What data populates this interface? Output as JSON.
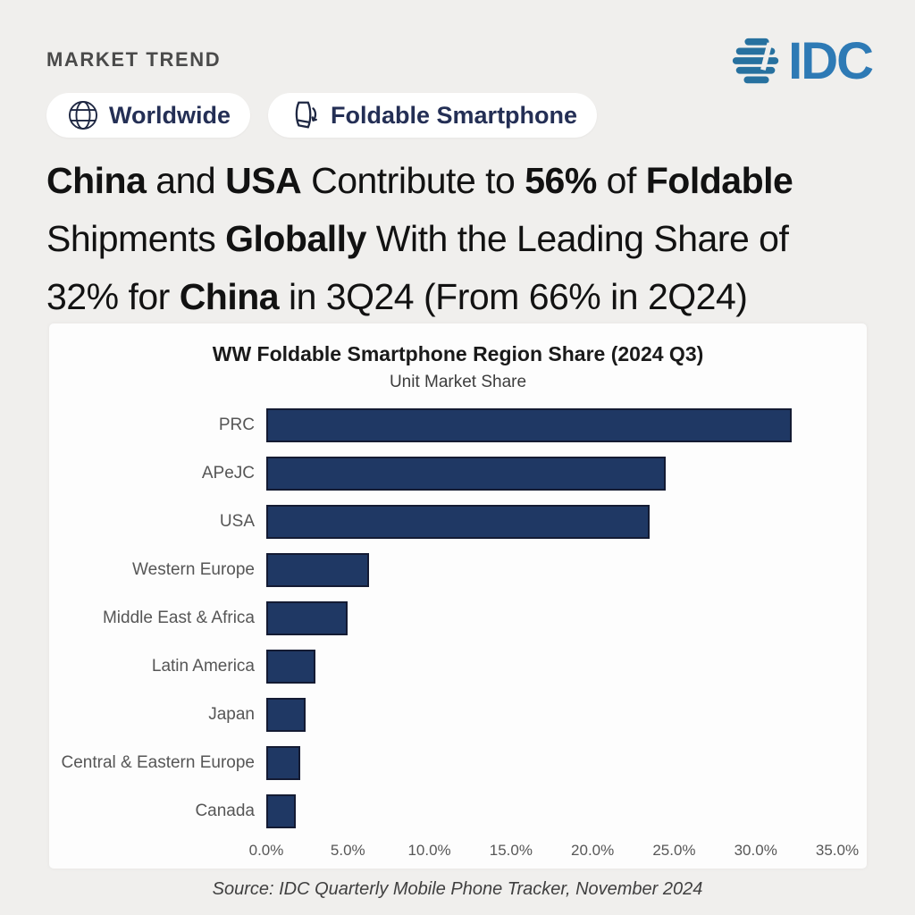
{
  "header": {
    "eyebrow": "MARKET TREND",
    "logo_text": "IDC"
  },
  "badges": [
    {
      "label": "Worldwide",
      "icon": "globe-icon"
    },
    {
      "label": "Foldable Smartphone",
      "icon": "foldable-phone-icon"
    }
  ],
  "headline": {
    "lines": [
      [
        {
          "text": "China",
          "bold": true
        },
        {
          "text": " and ",
          "bold": false
        },
        {
          "text": "USA",
          "bold": true
        },
        {
          "text": " Contribute to ",
          "bold": false
        },
        {
          "text": "56%",
          "bold": true
        },
        {
          "text": " of ",
          "bold": false
        },
        {
          "text": "Foldable",
          "bold": true
        }
      ],
      [
        {
          "text": "Shipments ",
          "bold": false
        },
        {
          "text": "Globally",
          "bold": true
        },
        {
          "text": " With the Leading Share of",
          "bold": false
        }
      ],
      [
        {
          "text": "32% for ",
          "bold": false
        },
        {
          "text": "China",
          "bold": true
        },
        {
          "text": " in 3Q24 (From 66% in 2Q24)",
          "bold": false
        }
      ]
    ]
  },
  "chart_data": {
    "type": "bar",
    "orientation": "horizontal",
    "title": "WW Foldable Smartphone Region Share (2024 Q3)",
    "subtitle": "Unit Market Share",
    "categories": [
      "PRC",
      "APeJC",
      "USA",
      "Western Europe",
      "Middle East & Africa",
      "Latin America",
      "Japan",
      "Central & Eastern Europe",
      "Canada"
    ],
    "values": [
      32.2,
      24.5,
      23.5,
      6.3,
      5.0,
      3.0,
      2.4,
      2.1,
      1.8
    ],
    "unit": "%",
    "xlim": [
      0,
      35
    ],
    "x_ticks": [
      "0.0%",
      "5.0%",
      "10.0%",
      "15.0%",
      "20.0%",
      "25.0%",
      "30.0%",
      "35.0%"
    ],
    "grid": false,
    "legend": false,
    "bar_color": "#1f3864"
  },
  "footer": {
    "source": "Source: IDC Quarterly Mobile Phone Tracker, November 2024"
  },
  "colors": {
    "background": "#f0efed",
    "card": "#fdfdfd",
    "bar": "#1f3864",
    "logo_blue": "#2e7ab5",
    "badge_text_navy": "#242f55"
  }
}
